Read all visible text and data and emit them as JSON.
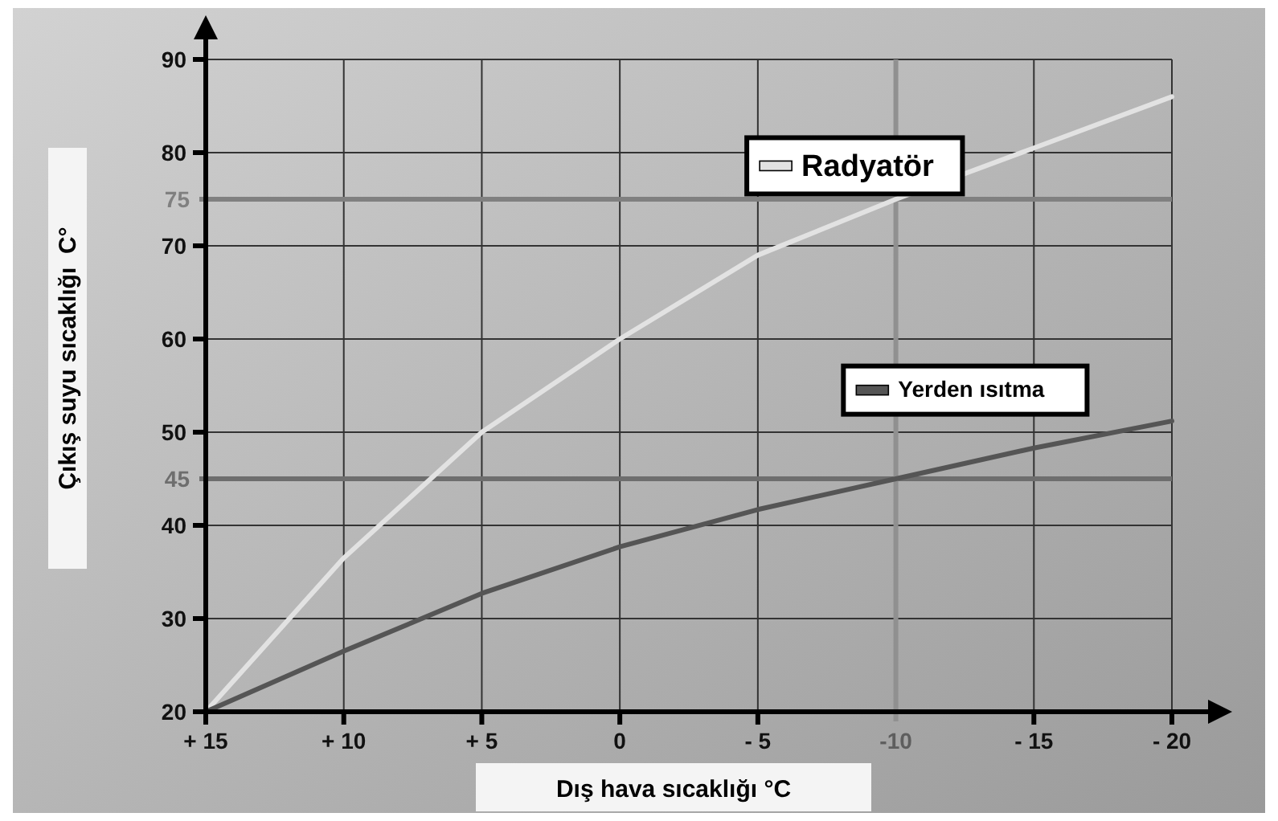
{
  "chart_data": {
    "type": "line",
    "xlabel": "Dış hava sıcaklığı °C",
    "ylabel": "Çıkış suyu sıcaklığı  C°",
    "x": [
      15,
      10,
      5,
      0,
      -5,
      -10,
      -15,
      -20
    ],
    "series": [
      {
        "name": "Radyatör",
        "color": "#e2e2e2",
        "values": [
          20,
          36.5,
          50,
          60,
          69,
          75,
          80.5,
          86
        ]
      },
      {
        "name": "Yerden ısıtma",
        "color": "#555555",
        "values": [
          20,
          26.5,
          32.7,
          37.7,
          41.7,
          45,
          48.3,
          51.2
        ]
      }
    ],
    "xlim": [
      15,
      -20
    ],
    "ylim": [
      20,
      90
    ],
    "xticks": [
      {
        "value": 15,
        "label": "+ 15"
      },
      {
        "value": 10,
        "label": "+ 10"
      },
      {
        "value": 5,
        "label": "+ 5"
      },
      0,
      {
        "value": -5,
        "label": "- 5"
      },
      {
        "value": -15,
        "label": "- 15"
      },
      {
        "value": -20,
        "label": "- 20"
      }
    ],
    "yticks": [
      20,
      30,
      40,
      50,
      60,
      70,
      80,
      90
    ],
    "ref_lines": [
      {
        "axis": "y",
        "value": 75,
        "label": "75",
        "color": "#808080"
      },
      {
        "axis": "y",
        "value": 45,
        "label": "45",
        "color": "#6e6e6e"
      },
      {
        "axis": "x",
        "value": -10,
        "label": "-10",
        "color": "#909090"
      }
    ],
    "grid": true,
    "legend": "top right",
    "marker": "none",
    "line_style": "solid"
  }
}
